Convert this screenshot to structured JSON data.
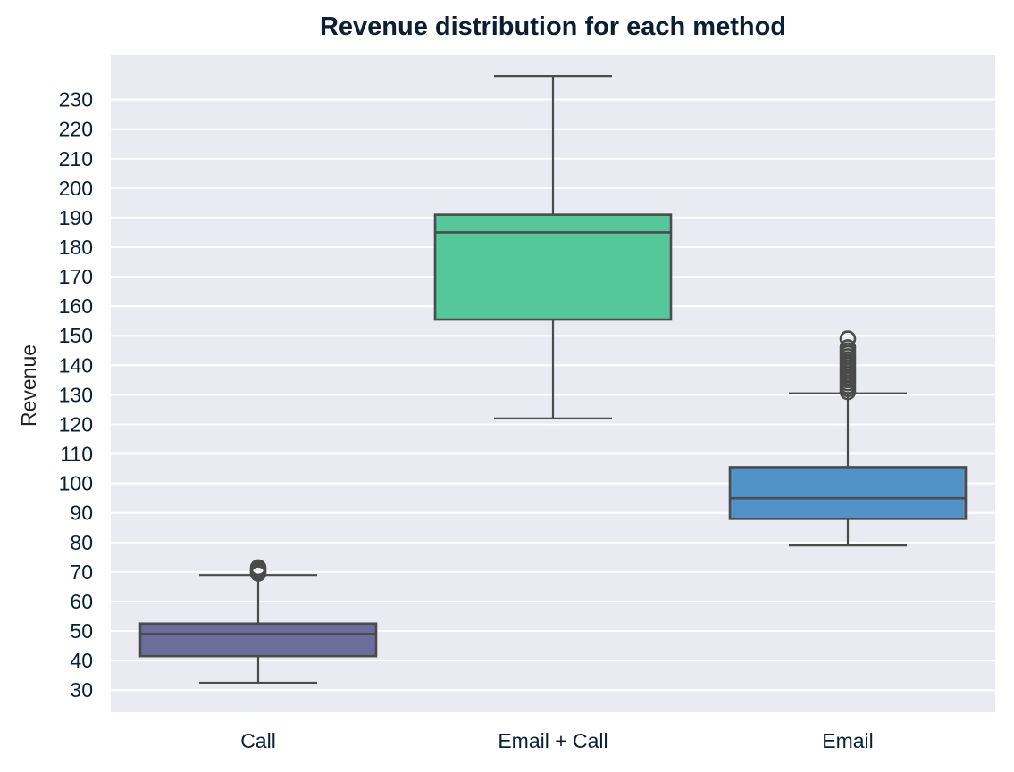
{
  "chart_data": {
    "type": "box",
    "title": "Revenue distribution for each method",
    "xlabel": "",
    "ylabel": "Revenue",
    "ylim": [
      22.5,
      245
    ],
    "yticks": [
      30,
      40,
      50,
      60,
      70,
      80,
      90,
      100,
      110,
      120,
      130,
      140,
      150,
      160,
      170,
      180,
      190,
      200,
      210,
      220,
      230
    ],
    "grid": true,
    "background_color": "#eaeaf2",
    "categories": [
      "Call",
      "Email + Call",
      "Email"
    ],
    "series": [
      {
        "category": "Call",
        "color": "#6b6d9b",
        "whisker_low": 32.5,
        "q1": 41.5,
        "median": 49,
        "q3": 52.5,
        "whisker_high": 69,
        "outliers": [
          69.5,
          70,
          70.5,
          71,
          71.5
        ]
      },
      {
        "category": "Email + Call",
        "color": "#55c79b",
        "whisker_low": 122,
        "q1": 155.5,
        "median": 185,
        "q3": 191,
        "whisker_high": 238,
        "outliers": []
      },
      {
        "category": "Email",
        "color": "#5193c8",
        "whisker_low": 79,
        "q1": 88,
        "median": 95,
        "q3": 105.5,
        "whisker_high": 130.5,
        "outliers": [
          131,
          132,
          133,
          134,
          135,
          136,
          137,
          138,
          139,
          140,
          141,
          142,
          143,
          144,
          145,
          146,
          149
        ]
      }
    ]
  }
}
